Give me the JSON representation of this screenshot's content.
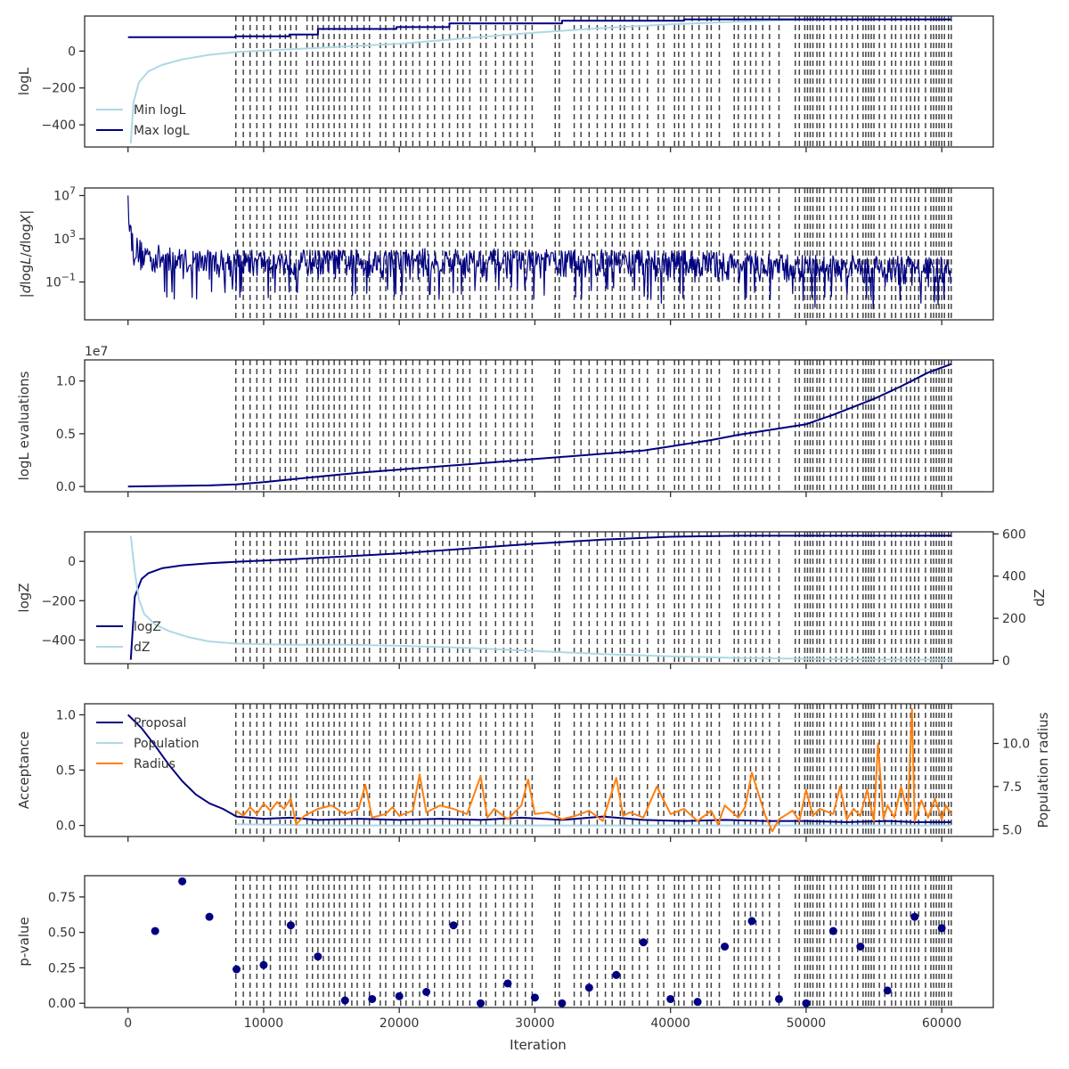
{
  "chart_data": {
    "type": "line",
    "shared_x": {
      "label": "Iteration",
      "range": [
        -3200,
        63800
      ],
      "ticks": [
        0,
        10000,
        20000,
        30000,
        40000,
        50000,
        60000
      ],
      "tick_labels": [
        "0",
        "10000",
        "20000",
        "30000",
        "40000",
        "50000",
        "60000"
      ],
      "dashed_vlines": [
        7950,
        8500,
        9000,
        9500,
        10000,
        10500,
        11200,
        11600,
        12000,
        12400,
        13200,
        13600,
        14000,
        14400,
        14800,
        15200,
        15600,
        16000,
        16500,
        16900,
        17400,
        17800,
        18600,
        19000,
        19600,
        20100,
        20500,
        21000,
        21500,
        22100,
        22600,
        23200,
        23700,
        24300,
        24700,
        25200,
        26000,
        26400,
        27100,
        27700,
        28200,
        28700,
        29300,
        29800,
        31500,
        31800,
        32900,
        33400,
        34000,
        34600,
        35200,
        35700,
        36300,
        36600,
        37200,
        37700,
        38300,
        39100,
        39500,
        40300,
        40600,
        41000,
        41600,
        42100,
        42700,
        43000,
        43600,
        44700,
        45000,
        45500,
        45900,
        46300,
        46800,
        47300,
        48000,
        49200,
        49500,
        49900,
        50100,
        50300,
        50500,
        50800,
        51000,
        51300,
        51800,
        52200,
        52600,
        53000,
        53400,
        53800,
        54200,
        54400,
        54600,
        54800,
        55000,
        55400,
        55800,
        56300,
        56600,
        57000,
        57400,
        57700,
        58000,
        58300,
        58800,
        59200,
        59400,
        59600,
        59800,
        60000,
        60200,
        60500,
        60700
      ]
    },
    "panels": [
      {
        "id": "logl",
        "ylabel": "logL",
        "ylim": [
          -520,
          190
        ],
        "yticks": [
          0,
          -200,
          -400
        ],
        "ytick_labels": [
          "0",
          "−200",
          "−400"
        ],
        "legend_loc": "lower-left",
        "series": [
          {
            "name": "Min logL",
            "color": "#add8e6",
            "x": [
              200,
              400,
              800,
              1500,
              2500,
              4000,
              6000,
              8000,
              12000,
              16000,
              20000,
              25000,
              30000,
              35000,
              40000,
              45000,
              50000,
              55000,
              60700
            ],
            "y": [
              -500,
              -280,
              -170,
              -110,
              -75,
              -45,
              -20,
              -5,
              10,
              25,
              40,
              70,
              100,
              125,
              145,
              160,
              170,
              172,
              173
            ]
          },
          {
            "name": "Max logL",
            "color": "#000080",
            "x": [
              0,
              7900,
              7900,
              11900,
              11900,
              14000,
              14000,
              19800,
              19800,
              23700,
              23700,
              32000,
              32000,
              41000,
              41000,
              60700
            ],
            "y": [
              75,
              75,
              80,
              80,
              90,
              90,
              120,
              120,
              130,
              130,
              150,
              150,
              165,
              165,
              172,
              172
            ]
          }
        ]
      },
      {
        "id": "dlogl",
        "ylabel": "|dlogL/dlogX|",
        "log_scale": true,
        "ylim_log10": [
          -4.5,
          7.7
        ],
        "yticks": [
          7,
          3,
          -1
        ],
        "ytick_labels": [
          "10^7",
          "10^3",
          "10^-1"
        ],
        "series": [
          {
            "name": "",
            "color": "#000080",
            "x": [
              0,
              100,
              200,
              400,
              800,
              1500,
              3000,
              6000,
              10000,
              15000,
              20000,
              25000,
              30000,
              35000,
              40000,
              45000,
              50000,
              55000,
              60700
            ],
            "upper_log10": [
              7.0,
              6.3,
              4.8,
              3.6,
              3.0,
              2.7,
              2.2,
              2.0,
              2.0,
              2.0,
              2.1,
              2.1,
              2.0,
              2.0,
              2.0,
              1.7,
              1.5,
              1.5,
              1.3
            ],
            "lower_log10": [
              7.0,
              3.6,
              1.0,
              0.3,
              -0.2,
              -0.6,
              -0.7,
              -0.8,
              -0.8,
              -0.8,
              -0.9,
              -0.9,
              -0.8,
              -0.9,
              -1.0,
              -1.2,
              -1.4,
              -1.6,
              -1.9
            ]
          }
        ]
      },
      {
        "id": "evals",
        "ylabel": "logL evaluations",
        "offset_label": "1e7",
        "ylim": [
          -0.05,
          1.2
        ],
        "yticks": [
          0.0,
          0.5,
          1.0
        ],
        "ytick_labels": [
          "0.0",
          "0.5",
          "1.0"
        ],
        "series": [
          {
            "name": "",
            "color": "#000080",
            "x": [
              0,
              3000,
              6000,
              8000,
              10000,
              13000,
              17000,
              20000,
              25000,
              30000,
              35000,
              38000,
              40000,
              43000,
              45000,
              48000,
              50000,
              52000,
              55000,
              57000,
              59000,
              60700
            ],
            "y": [
              0.0,
              0.005,
              0.01,
              0.02,
              0.04,
              0.08,
              0.13,
              0.16,
              0.21,
              0.26,
              0.31,
              0.34,
              0.38,
              0.44,
              0.49,
              0.55,
              0.59,
              0.68,
              0.83,
              0.95,
              1.08,
              1.16
            ]
          }
        ]
      },
      {
        "id": "logz",
        "ylabel": "logZ",
        "ylabel_right": "dZ",
        "ylim": [
          -520,
          150
        ],
        "yticks": [
          0,
          -200,
          -400
        ],
        "ytick_labels": [
          "0",
          "−200",
          "−400"
        ],
        "ylim_right": [
          -15,
          610
        ],
        "yticks_right": [
          0,
          200,
          400,
          600
        ],
        "ytick_labels_right": [
          "0",
          "200",
          "400",
          "600"
        ],
        "legend_loc": "lower-left",
        "series": [
          {
            "name": "logZ",
            "color": "#000080",
            "axis": "left",
            "x": [
              200,
              500,
              1000,
              1500,
              2500,
              4000,
              6000,
              8000,
              12000,
              16000,
              20000,
              25000,
              30000,
              35000,
              40000,
              45000,
              50000,
              55000,
              60700
            ],
            "y": [
              -500,
              -180,
              -90,
              -60,
              -35,
              -20,
              -10,
              -2,
              10,
              25,
              40,
              65,
              90,
              110,
              125,
              130,
              130,
              130,
              130
            ]
          },
          {
            "name": "dZ",
            "color": "#add8e6",
            "axis": "right",
            "x": [
              200,
              500,
              800,
              1200,
              2000,
              3000,
              4500,
              6000,
              8000,
              12000,
              16000,
              20000,
              25000,
              30000,
              35000,
              40000,
              45000,
              50000,
              55000,
              60700
            ],
            "y": [
              590,
              420,
              290,
              220,
              170,
              140,
              110,
              90,
              80,
              75,
              75,
              70,
              60,
              45,
              30,
              20,
              12,
              8,
              5,
              4
            ]
          }
        ]
      },
      {
        "id": "acceptance",
        "ylabel": "Acceptance",
        "ylabel_right": "Population radius",
        "ylim": [
          -0.1,
          1.1
        ],
        "yticks": [
          0.0,
          0.5,
          1.0
        ],
        "ytick_labels": [
          "0.0",
          "0.5",
          "1.0"
        ],
        "ylim_right": [
          4.6,
          12.3
        ],
        "yticks_right": [
          5.0,
          7.5,
          10.0
        ],
        "ytick_labels_right": [
          "5.0",
          "7.5",
          "10.0"
        ],
        "legend_loc": "upper-left",
        "series": [
          {
            "name": "Proposal",
            "color": "#000080",
            "axis": "left",
            "x": [
              0,
              1000,
              2000,
              3000,
              4000,
              5000,
              6000,
              7000,
              8000,
              10000,
              12000,
              14000,
              17000,
              20000,
              23000,
              26000,
              29000,
              32000,
              35000,
              38000,
              41000,
              44000,
              47000,
              50000,
              53000,
              56000,
              58000,
              60700
            ],
            "y": [
              1.0,
              0.88,
              0.72,
              0.55,
              0.4,
              0.28,
              0.2,
              0.15,
              0.08,
              0.06,
              0.07,
              0.05,
              0.06,
              0.05,
              0.06,
              0.05,
              0.07,
              0.05,
              0.08,
              0.05,
              0.04,
              0.05,
              0.04,
              0.04,
              0.03,
              0.04,
              0.03,
              0.03
            ]
          },
          {
            "name": "Population",
            "color": "#add8e6",
            "axis": "left",
            "x": [
              7950,
              15000,
              20000,
              30000,
              40000,
              50000,
              60700
            ],
            "y": [
              0.01,
              0.0,
              0.0,
              0.0,
              0.0,
              0.0,
              0.0
            ]
          },
          {
            "name": "Radius",
            "color": "#ff7f0e",
            "axis": "right",
            "x": [
              7950,
              8500,
              9000,
              9500,
              10000,
              10500,
              11000,
              11500,
              12000,
              12400,
              13000,
              14000,
              15000,
              16000,
              17000,
              17500,
              18000,
              19000,
              19500,
              20000,
              21000,
              21500,
              22000,
              23000,
              24000,
              25000,
              26000,
              26500,
              27000,
              28000,
              29000,
              29500,
              30000,
              31000,
              32000,
              33000,
              34000,
              35000,
              36000,
              36500,
              37000,
              38000,
              39000,
              40000,
              41000,
              42000,
              43000,
              43500,
              44000,
              45000,
              45500,
              46000,
              47000,
              47500,
              48000,
              49000,
              49500,
              50000,
              50500,
              51000,
              52000,
              52500,
              53000,
              53500,
              54000,
              54500,
              55000,
              55300,
              55700,
              56000,
              56500,
              57000,
              57500,
              57800,
              58000,
              58500,
              59000,
              59500,
              60000,
              60300,
              60700
            ],
            "y": [
              6.1,
              5.8,
              6.3,
              5.9,
              6.5,
              6.1,
              6.6,
              6.2,
              6.8,
              5.3,
              5.8,
              6.2,
              6.4,
              5.9,
              6.2,
              7.6,
              5.7,
              5.9,
              6.3,
              5.8,
              6.1,
              8.2,
              6.0,
              6.4,
              6.2,
              5.9,
              8.1,
              5.7,
              6.2,
              5.6,
              6.4,
              7.9,
              5.9,
              6.0,
              5.6,
              5.8,
              6.1,
              5.5,
              8.0,
              5.8,
              6.0,
              5.7,
              7.5,
              5.9,
              6.2,
              5.5,
              6.1,
              5.3,
              6.4,
              5.7,
              6.3,
              8.3,
              5.8,
              4.9,
              5.6,
              6.1,
              5.5,
              7.3,
              5.8,
              6.2,
              5.9,
              7.5,
              5.6,
              6.2,
              5.8,
              7.3,
              5.5,
              10.0,
              5.6,
              6.4,
              5.7,
              7.5,
              5.9,
              12.0,
              5.5,
              6.7,
              5.7,
              6.8,
              5.6,
              6.4,
              5.9
            ]
          }
        ]
      },
      {
        "id": "pvalue",
        "type": "scatter",
        "ylabel": "p-value",
        "xlabel": "Iteration",
        "ylim": [
          -0.03,
          0.9
        ],
        "yticks": [
          0.0,
          0.25,
          0.5,
          0.75
        ],
        "ytick_labels": [
          "0.00",
          "0.25",
          "0.50",
          "0.75"
        ],
        "series": [
          {
            "name": "",
            "color": "#000080",
            "x": [
              2000,
              4000,
              6000,
              8000,
              10000,
              12000,
              14000,
              16000,
              18000,
              20000,
              22000,
              24000,
              26000,
              28000,
              30000,
              32000,
              34000,
              36000,
              38000,
              40000,
              42000,
              44000,
              46000,
              48000,
              50000,
              52000,
              54000,
              56000,
              58000,
              60000
            ],
            "y": [
              0.51,
              0.86,
              0.61,
              0.24,
              0.27,
              0.55,
              0.33,
              0.02,
              0.03,
              0.05,
              0.08,
              0.55,
              0.0,
              0.14,
              0.04,
              0.0,
              0.11,
              0.2,
              0.43,
              0.03,
              0.01,
              0.4,
              0.58,
              0.03,
              0.0,
              0.51,
              0.4,
              0.09,
              0.61,
              0.53
            ]
          }
        ]
      }
    ]
  }
}
